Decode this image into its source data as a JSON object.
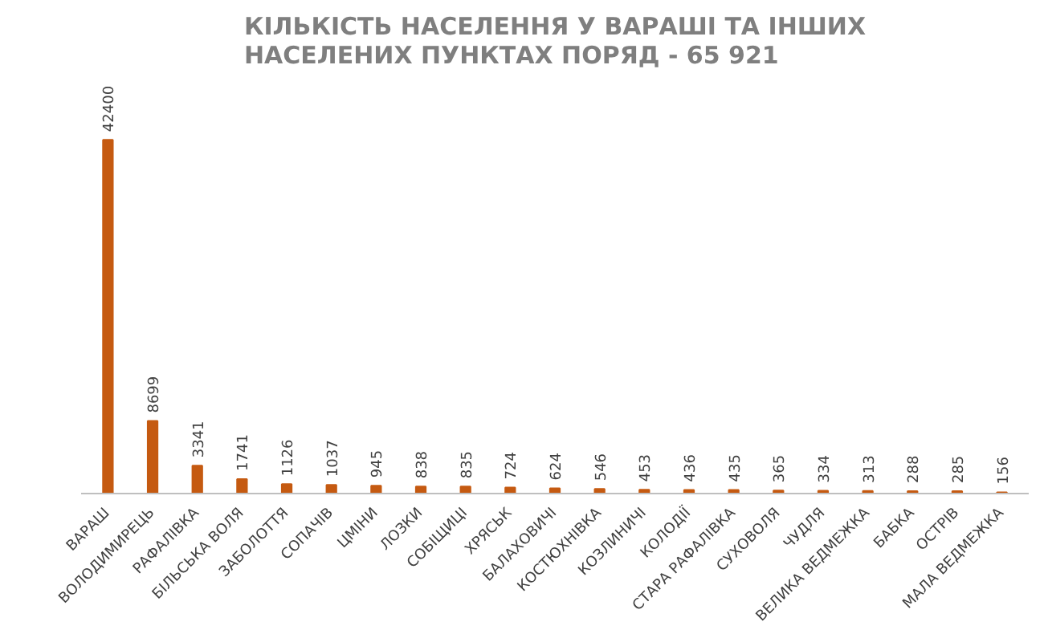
{
  "chart_data": {
    "type": "bar",
    "title": "КІЛЬКІСТЬ НАСЕЛЕННЯ У ВАРАШІ ТА ІНШИХ\nНАСЕЛЕНИХ ПУНКТАХ ПОРЯД - 65 921",
    "categories": [
      "ВАРАШ",
      "ВОЛОДИМИРЕЦЬ",
      "РАФАЛІВКА",
      "БІЛЬСЬКА ВОЛЯ",
      "ЗАБОЛОТТЯ",
      "СОПАЧІВ",
      "ЦМІНИ",
      "ЛОЗКИ",
      "СОБІЩИЦІ",
      "ХРЯСЬК",
      "БАЛАХОВИЧІ",
      "КОСТЮХНІВКА",
      "КОЗЛИНИЧІ",
      "КОЛОДІЇ",
      "СТАРА РАФАЛІВКА",
      "СУХОВОЛЯ",
      "ЧУДЛЯ",
      "ВЕЛИКА ВЕДМЕЖКА",
      "БАБКА",
      "ОСТРІВ",
      "МАЛА ВЕДМЕЖКА"
    ],
    "values": [
      42400,
      8699,
      3341,
      1741,
      1126,
      1037,
      945,
      838,
      835,
      724,
      624,
      546,
      453,
      436,
      435,
      365,
      334,
      313,
      288,
      285,
      156
    ],
    "color": "#c55a11",
    "data_labels": true,
    "grid": false,
    "tick_labels": "x"
  }
}
